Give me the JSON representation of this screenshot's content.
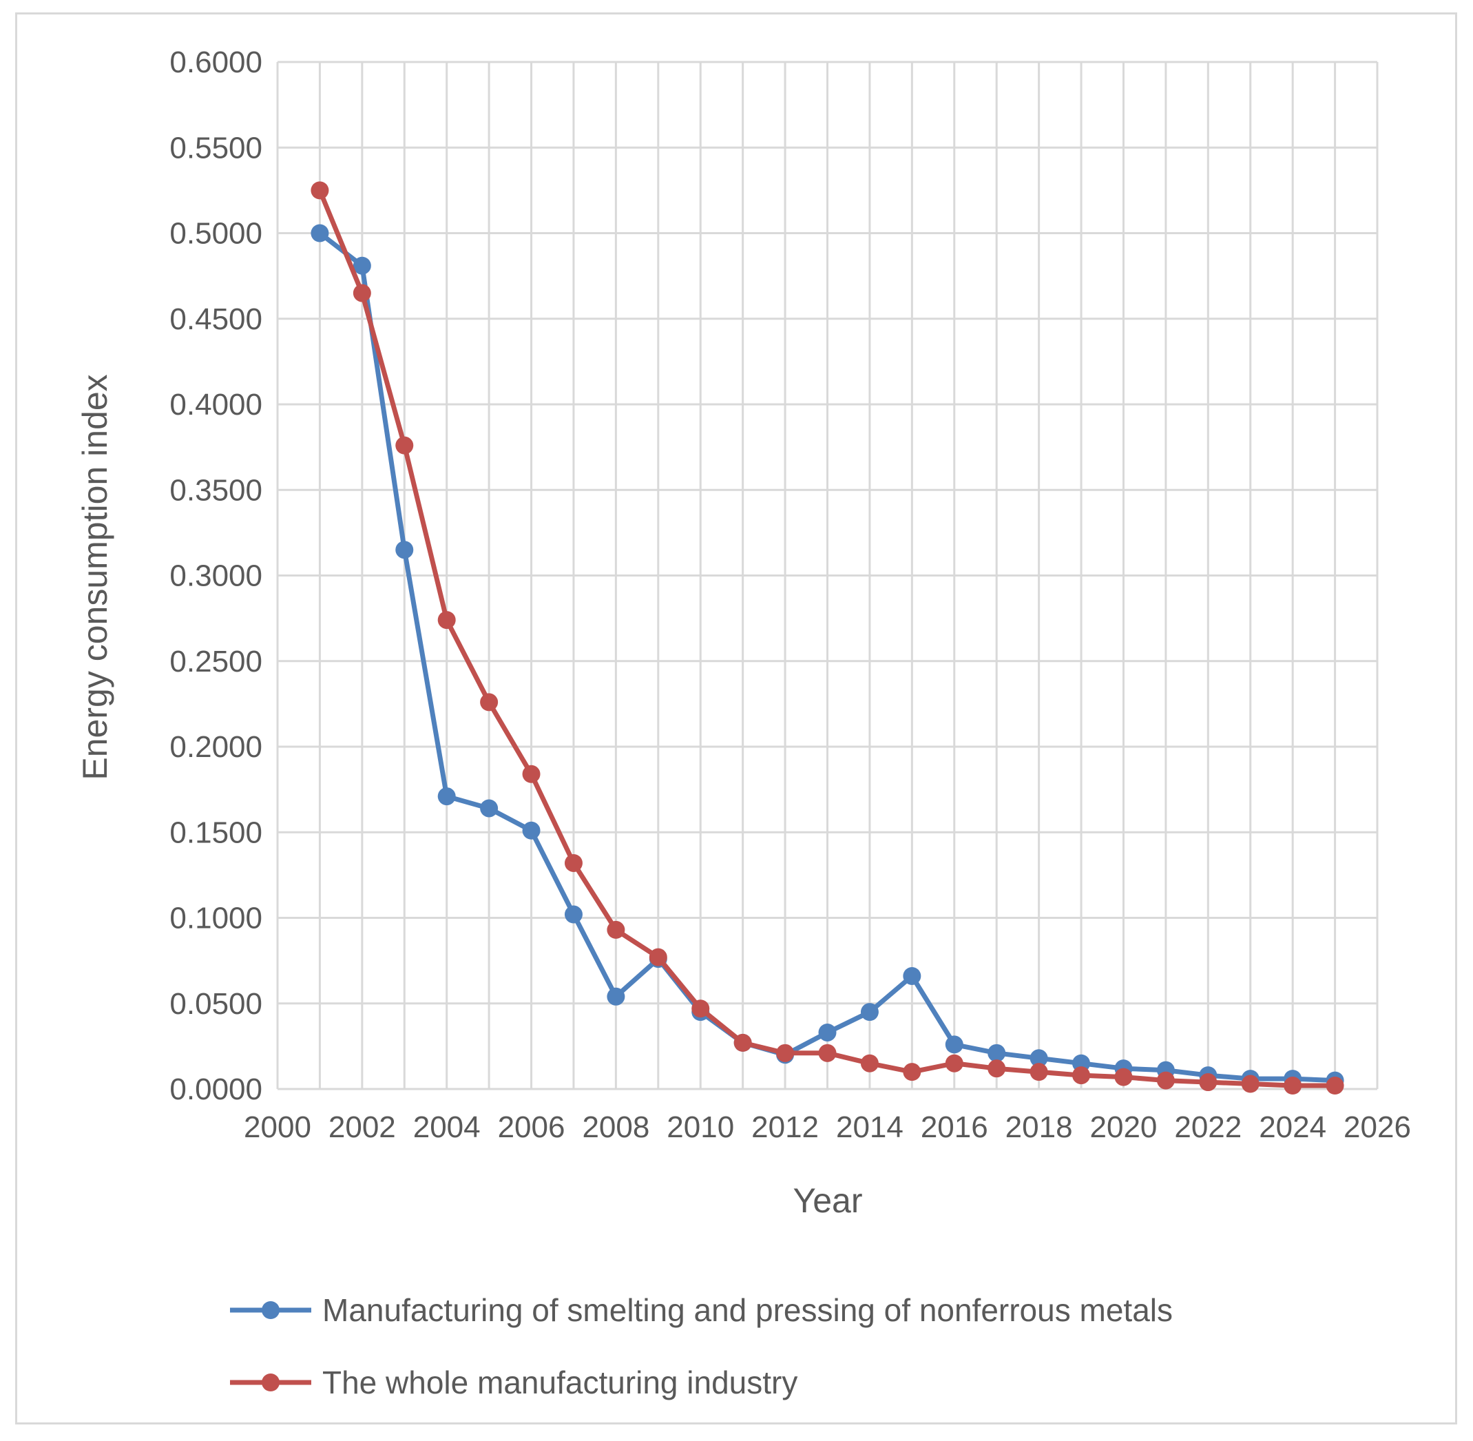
{
  "chart_data": {
    "type": "scatter",
    "title": "",
    "xlabel": "Year",
    "ylabel": "Energy consumption index",
    "xlim": [
      2000,
      2026
    ],
    "ylim": [
      0,
      0.6
    ],
    "x_ticks": [
      "2000",
      "2002",
      "2004",
      "2006",
      "2008",
      "2010",
      "2012",
      "2014",
      "2016",
      "2018",
      "2020",
      "2022",
      "2024",
      "2026"
    ],
    "y_ticks": [
      "0.0000",
      "0.0500",
      "0.1000",
      "0.1500",
      "0.2000",
      "0.2500",
      "0.3000",
      "0.3500",
      "0.4000",
      "0.4500",
      "0.5000",
      "0.5500",
      "0.6000"
    ],
    "grid": true,
    "legend_position": "bottom",
    "x": [
      2001,
      2002,
      2003,
      2004,
      2005,
      2006,
      2007,
      2008,
      2009,
      2010,
      2011,
      2012,
      2013,
      2014,
      2015,
      2016,
      2017,
      2018,
      2019,
      2020,
      2021,
      2022,
      2023,
      2024,
      2025
    ],
    "series": [
      {
        "name": "Manufacturing of smelting and pressing of nonferrous metals",
        "color": "#4f81bd",
        "values": [
          0.5,
          0.481,
          0.315,
          0.171,
          0.164,
          0.151,
          0.102,
          0.054,
          0.076,
          0.045,
          0.027,
          0.02,
          0.033,
          0.045,
          0.066,
          0.026,
          0.021,
          0.018,
          0.015,
          0.012,
          0.011,
          0.008,
          0.006,
          0.006,
          0.005
        ]
      },
      {
        "name": "The whole manufacturing industry",
        "color": "#c0504d",
        "values": [
          0.525,
          0.465,
          0.376,
          0.274,
          0.226,
          0.184,
          0.132,
          0.093,
          0.077,
          0.047,
          0.027,
          0.021,
          0.021,
          0.015,
          0.01,
          0.015,
          0.012,
          0.01,
          0.008,
          0.007,
          0.005,
          0.004,
          0.003,
          0.002,
          0.002
        ]
      }
    ]
  }
}
